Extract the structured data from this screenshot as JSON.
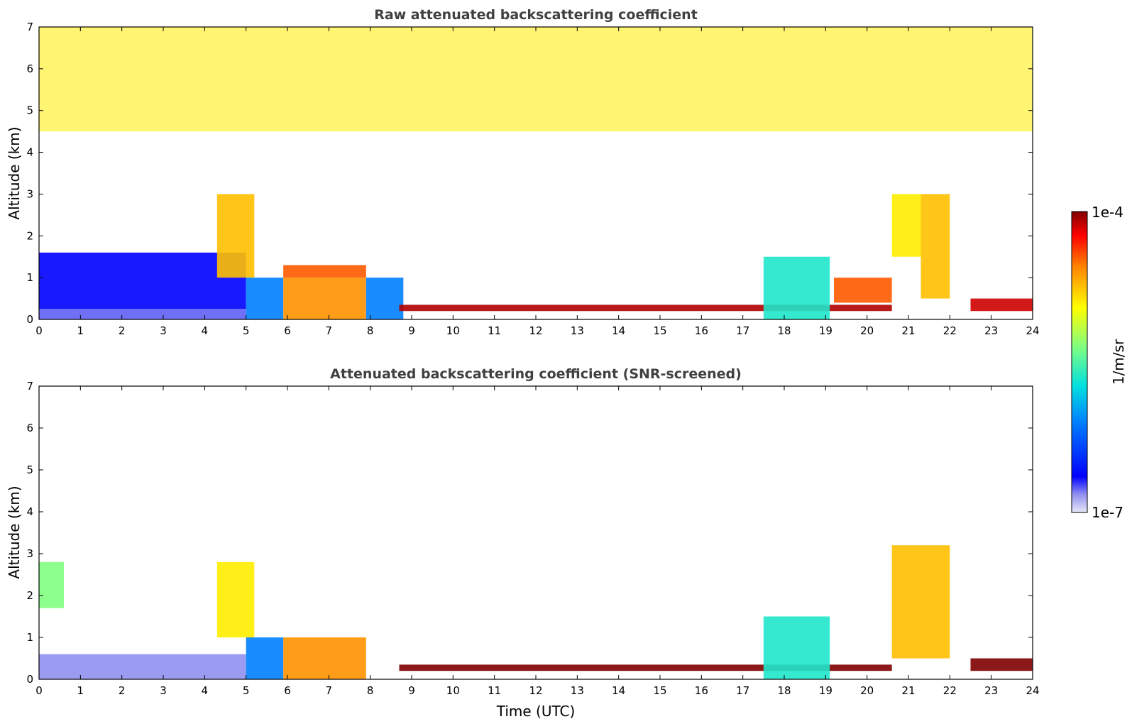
{
  "chart_data": [
    {
      "type": "heatmap",
      "title": "Raw attenuated backscattering coefficient",
      "xlabel": "",
      "ylabel": "Altitude (km)",
      "xlim": [
        0,
        24
      ],
      "ylim": [
        0,
        7
      ],
      "x_ticks": [
        0,
        1,
        2,
        3,
        4,
        5,
        6,
        7,
        8,
        9,
        10,
        11,
        12,
        13,
        14,
        15,
        16,
        17,
        18,
        19,
        20,
        21,
        22,
        23,
        24
      ],
      "y_ticks": [
        0,
        1,
        2,
        3,
        4,
        5,
        6,
        7
      ],
      "features": [
        {
          "x0": 0.0,
          "x1": 5.0,
          "y0": 0.0,
          "y1": 0.25,
          "level": 0.08
        },
        {
          "x0": 0.0,
          "x1": 5.0,
          "y0": 0.25,
          "y1": 1.6,
          "level": 0.12
        },
        {
          "x0": 4.3,
          "x1": 5.2,
          "y0": 1.0,
          "y1": 3.0,
          "level": 0.75
        },
        {
          "x0": 5.0,
          "x1": 5.9,
          "y0": 0.0,
          "y1": 1.0,
          "level": 0.3
        },
        {
          "x0": 5.9,
          "x1": 7.9,
          "y0": 0.0,
          "y1": 1.0,
          "level": 0.8
        },
        {
          "x0": 5.9,
          "x1": 7.9,
          "y0": 1.0,
          "y1": 1.3,
          "level": 0.85
        },
        {
          "x0": 7.9,
          "x1": 8.8,
          "y0": 0.0,
          "y1": 1.0,
          "level": 0.3
        },
        {
          "x0": 8.7,
          "x1": 20.6,
          "y0": 0.2,
          "y1": 0.35,
          "level": 0.97
        },
        {
          "x0": 17.5,
          "x1": 19.1,
          "y0": 0.0,
          "y1": 1.5,
          "level": 0.45
        },
        {
          "x0": 19.2,
          "x1": 20.6,
          "y0": 0.4,
          "y1": 1.0,
          "level": 0.85
        },
        {
          "x0": 20.6,
          "x1": 21.3,
          "y0": 1.5,
          "y1": 3.0,
          "level": 0.7
        },
        {
          "x0": 21.3,
          "x1": 22.0,
          "y0": 0.5,
          "y1": 3.0,
          "level": 0.75
        },
        {
          "x0": 22.5,
          "x1": 24.0,
          "y0": 0.2,
          "y1": 0.5,
          "level": 0.95
        },
        {
          "x0": 0.0,
          "x1": 24.0,
          "y0": 4.5,
          "y1": 7.0,
          "level": 0.7
        }
      ]
    },
    {
      "type": "heatmap",
      "title": "Attenuated backscattering coefficient (SNR-screened)",
      "xlabel": "Time (UTC)",
      "ylabel": "Altitude (km)",
      "xlim": [
        0,
        24
      ],
      "ylim": [
        0,
        7
      ],
      "x_ticks": [
        0,
        1,
        2,
        3,
        4,
        5,
        6,
        7,
        8,
        9,
        10,
        11,
        12,
        13,
        14,
        15,
        16,
        17,
        18,
        19,
        20,
        21,
        22,
        23,
        24
      ],
      "y_ticks": [
        0,
        1,
        2,
        3,
        4,
        5,
        6,
        7
      ],
      "features": [
        {
          "x0": 0.0,
          "x1": 5.0,
          "y0": 0.0,
          "y1": 0.6,
          "level": 0.06
        },
        {
          "x0": 0.0,
          "x1": 0.6,
          "y0": 1.7,
          "y1": 2.8,
          "level": 0.55
        },
        {
          "x0": 4.3,
          "x1": 5.2,
          "y0": 1.0,
          "y1": 2.8,
          "level": 0.7
        },
        {
          "x0": 5.0,
          "x1": 5.9,
          "y0": 0.0,
          "y1": 1.0,
          "level": 0.3
        },
        {
          "x0": 5.9,
          "x1": 7.9,
          "y0": 0.0,
          "y1": 1.0,
          "level": 0.8
        },
        {
          "x0": 8.7,
          "x1": 20.6,
          "y0": 0.2,
          "y1": 0.35,
          "level": 1.0
        },
        {
          "x0": 17.5,
          "x1": 19.1,
          "y0": 0.0,
          "y1": 1.5,
          "level": 0.45
        },
        {
          "x0": 20.6,
          "x1": 22.0,
          "y0": 0.5,
          "y1": 3.2,
          "level": 0.75
        },
        {
          "x0": 22.5,
          "x1": 24.0,
          "y0": 0.2,
          "y1": 0.5,
          "level": 1.0
        }
      ]
    }
  ],
  "colorbar": {
    "min_label": "1e-7",
    "max_label": "1e-4",
    "units_label": "1/m/sr",
    "colormap": "jet"
  }
}
